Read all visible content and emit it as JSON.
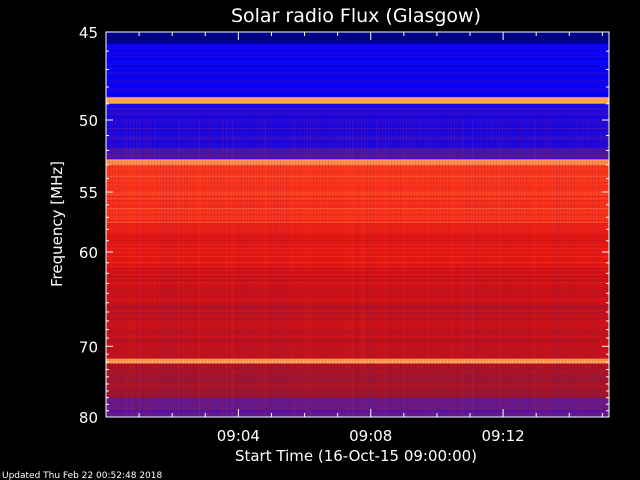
{
  "chart_data": {
    "type": "heatmap",
    "title": "Solar radio Flux (Glasgow)",
    "xlabel": "Start Time (16-Oct-15 09:00:00)",
    "ylabel": "Frequency [MHz]",
    "ylim": [
      45,
      80
    ],
    "xlim_minutes": [
      0,
      15.2
    ],
    "y_ticks": [
      45,
      50,
      55,
      60,
      70,
      80
    ],
    "x_ticks": [
      {
        "label": "09:04",
        "minute": 4
      },
      {
        "label": "09:08",
        "minute": 8
      },
      {
        "label": "09:12",
        "minute": 12
      }
    ],
    "y_scale": "reciprocal",
    "colormap": [
      "#000080",
      "#0000ff",
      "#5b1a9c",
      "#a0142a",
      "#e01010",
      "#ff4020",
      "#ffb060"
    ],
    "frequency_bands": [
      {
        "from": 45,
        "to": 45.6,
        "level": 0.0
      },
      {
        "from": 45.6,
        "to": 48.6,
        "level": 0.18
      },
      {
        "from": 48.6,
        "to": 49.0,
        "level": 1.0
      },
      {
        "from": 49.0,
        "to": 51.8,
        "level": 0.22
      },
      {
        "from": 51.8,
        "to": 52.6,
        "level": 0.3
      },
      {
        "from": 52.6,
        "to": 53.0,
        "level": 0.95
      },
      {
        "from": 53.0,
        "to": 57.5,
        "level": 0.8
      },
      {
        "from": 57.5,
        "to": 61.5,
        "level": 0.7
      },
      {
        "from": 61.5,
        "to": 65.0,
        "level": 0.62
      },
      {
        "from": 65.0,
        "to": 71.5,
        "level": 0.58
      },
      {
        "from": 71.5,
        "to": 72.2,
        "level": 1.0
      },
      {
        "from": 72.2,
        "to": 77.0,
        "level": 0.5
      },
      {
        "from": 77.0,
        "to": 80.0,
        "level": 0.35
      }
    ],
    "footer": "Updated Thu Feb 22 00:52:48 2018"
  }
}
